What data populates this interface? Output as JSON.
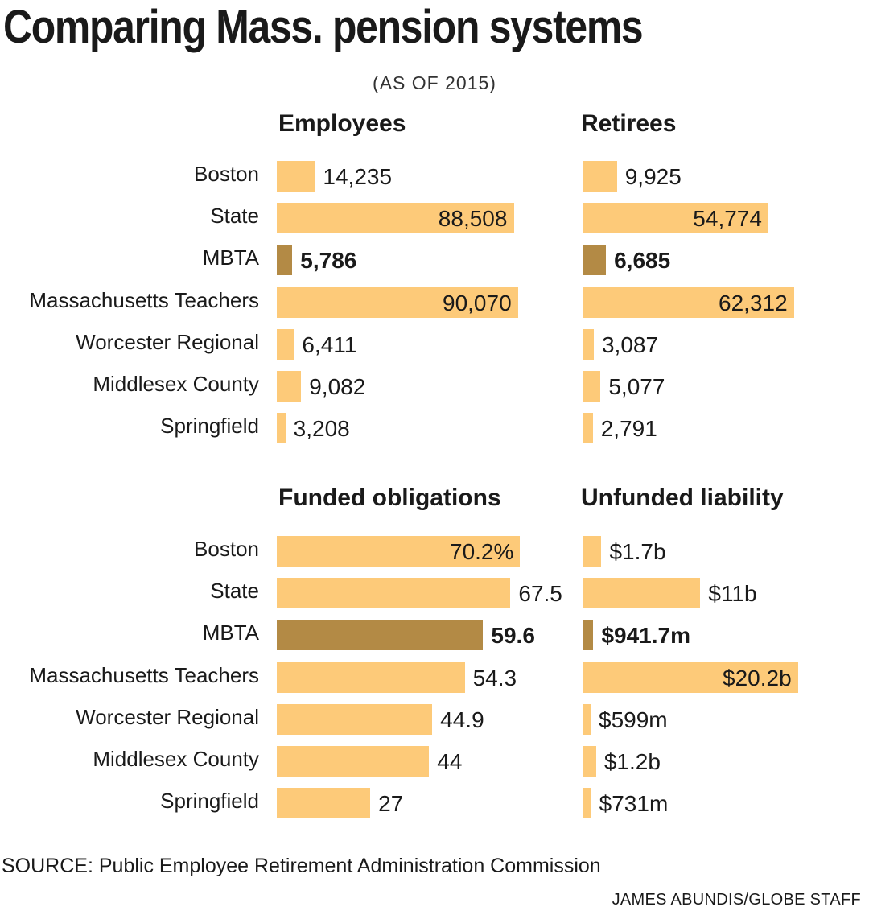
{
  "title": "Comparing Mass. pension systems",
  "subtitle": "(AS OF 2015)",
  "source": "SOURCE: Public Employee Retirement Administration Commission",
  "credit": "JAMES ABUNDIS/GLOBE STAFF",
  "colors": {
    "bar": "#fdca79",
    "highlight": "#b38a45"
  },
  "chart_data": [
    {
      "type": "bar",
      "title": "Employees",
      "categories": [
        "Boston",
        "State",
        "MBTA",
        "Massachusetts Teachers",
        "Worcester Regional",
        "Middlesex County",
        "Springfield"
      ],
      "values": [
        14235,
        88508,
        5786,
        90070,
        6411,
        9082,
        3208
      ],
      "labels": [
        "14,235",
        "88,508",
        "5,786",
        "90,070",
        "6,411",
        "9,082",
        "3,208"
      ],
      "highlight": "MBTA"
    },
    {
      "type": "bar",
      "title": "Retirees",
      "categories": [
        "Boston",
        "State",
        "MBTA",
        "Massachusetts Teachers",
        "Worcester Regional",
        "Middlesex County",
        "Springfield"
      ],
      "values": [
        9925,
        54774,
        6685,
        62312,
        3087,
        5077,
        2791
      ],
      "labels": [
        "9,925",
        "54,774",
        "6,685",
        "62,312",
        "3,087",
        "5,077",
        "2,791"
      ],
      "highlight": "MBTA"
    },
    {
      "type": "bar",
      "title": "Funded obligations",
      "categories": [
        "Boston",
        "State",
        "MBTA",
        "Massachusetts Teachers",
        "Worcester Regional",
        "Middlesex County",
        "Springfield"
      ],
      "values": [
        70.2,
        67.5,
        59.6,
        54.3,
        44.9,
        44,
        27
      ],
      "labels": [
        "70.2%",
        "67.5",
        "59.6",
        "54.3",
        "44.9",
        "44",
        "27"
      ],
      "highlight": "MBTA"
    },
    {
      "type": "bar",
      "title": "Unfunded liability",
      "categories": [
        "Boston",
        "State",
        "MBTA",
        "Massachusetts Teachers",
        "Worcester Regional",
        "Middlesex County",
        "Springfield"
      ],
      "values": [
        1.7,
        11,
        0.9417,
        20.2,
        0.599,
        1.2,
        0.731
      ],
      "labels": [
        "$1.7b",
        "$11b",
        "$941.7m",
        "$20.2b",
        "$599m",
        "$1.2b",
        "$731m"
      ],
      "highlight": "MBTA"
    }
  ]
}
